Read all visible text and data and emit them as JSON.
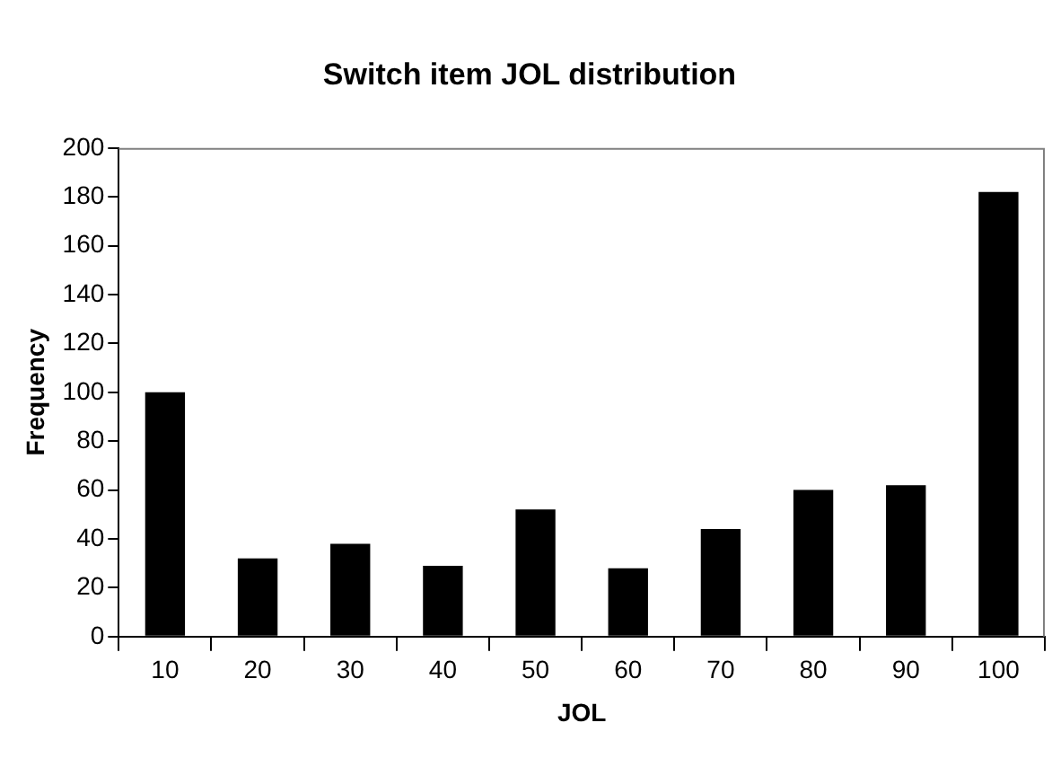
{
  "chart_data": {
    "type": "bar",
    "title": "Switch item JOL distribution",
    "xlabel": "JOL",
    "ylabel": "Frequency",
    "categories": [
      "10",
      "20",
      "30",
      "40",
      "50",
      "60",
      "70",
      "80",
      "90",
      "100"
    ],
    "values": [
      100,
      32,
      38,
      29,
      52,
      28,
      44,
      60,
      62,
      182
    ],
    "color": "#000000",
    "ylim": [
      0,
      200
    ],
    "yticks": [
      0,
      20,
      40,
      60,
      80,
      100,
      120,
      140,
      160,
      180,
      200
    ],
    "grid": false,
    "legend": false
  }
}
